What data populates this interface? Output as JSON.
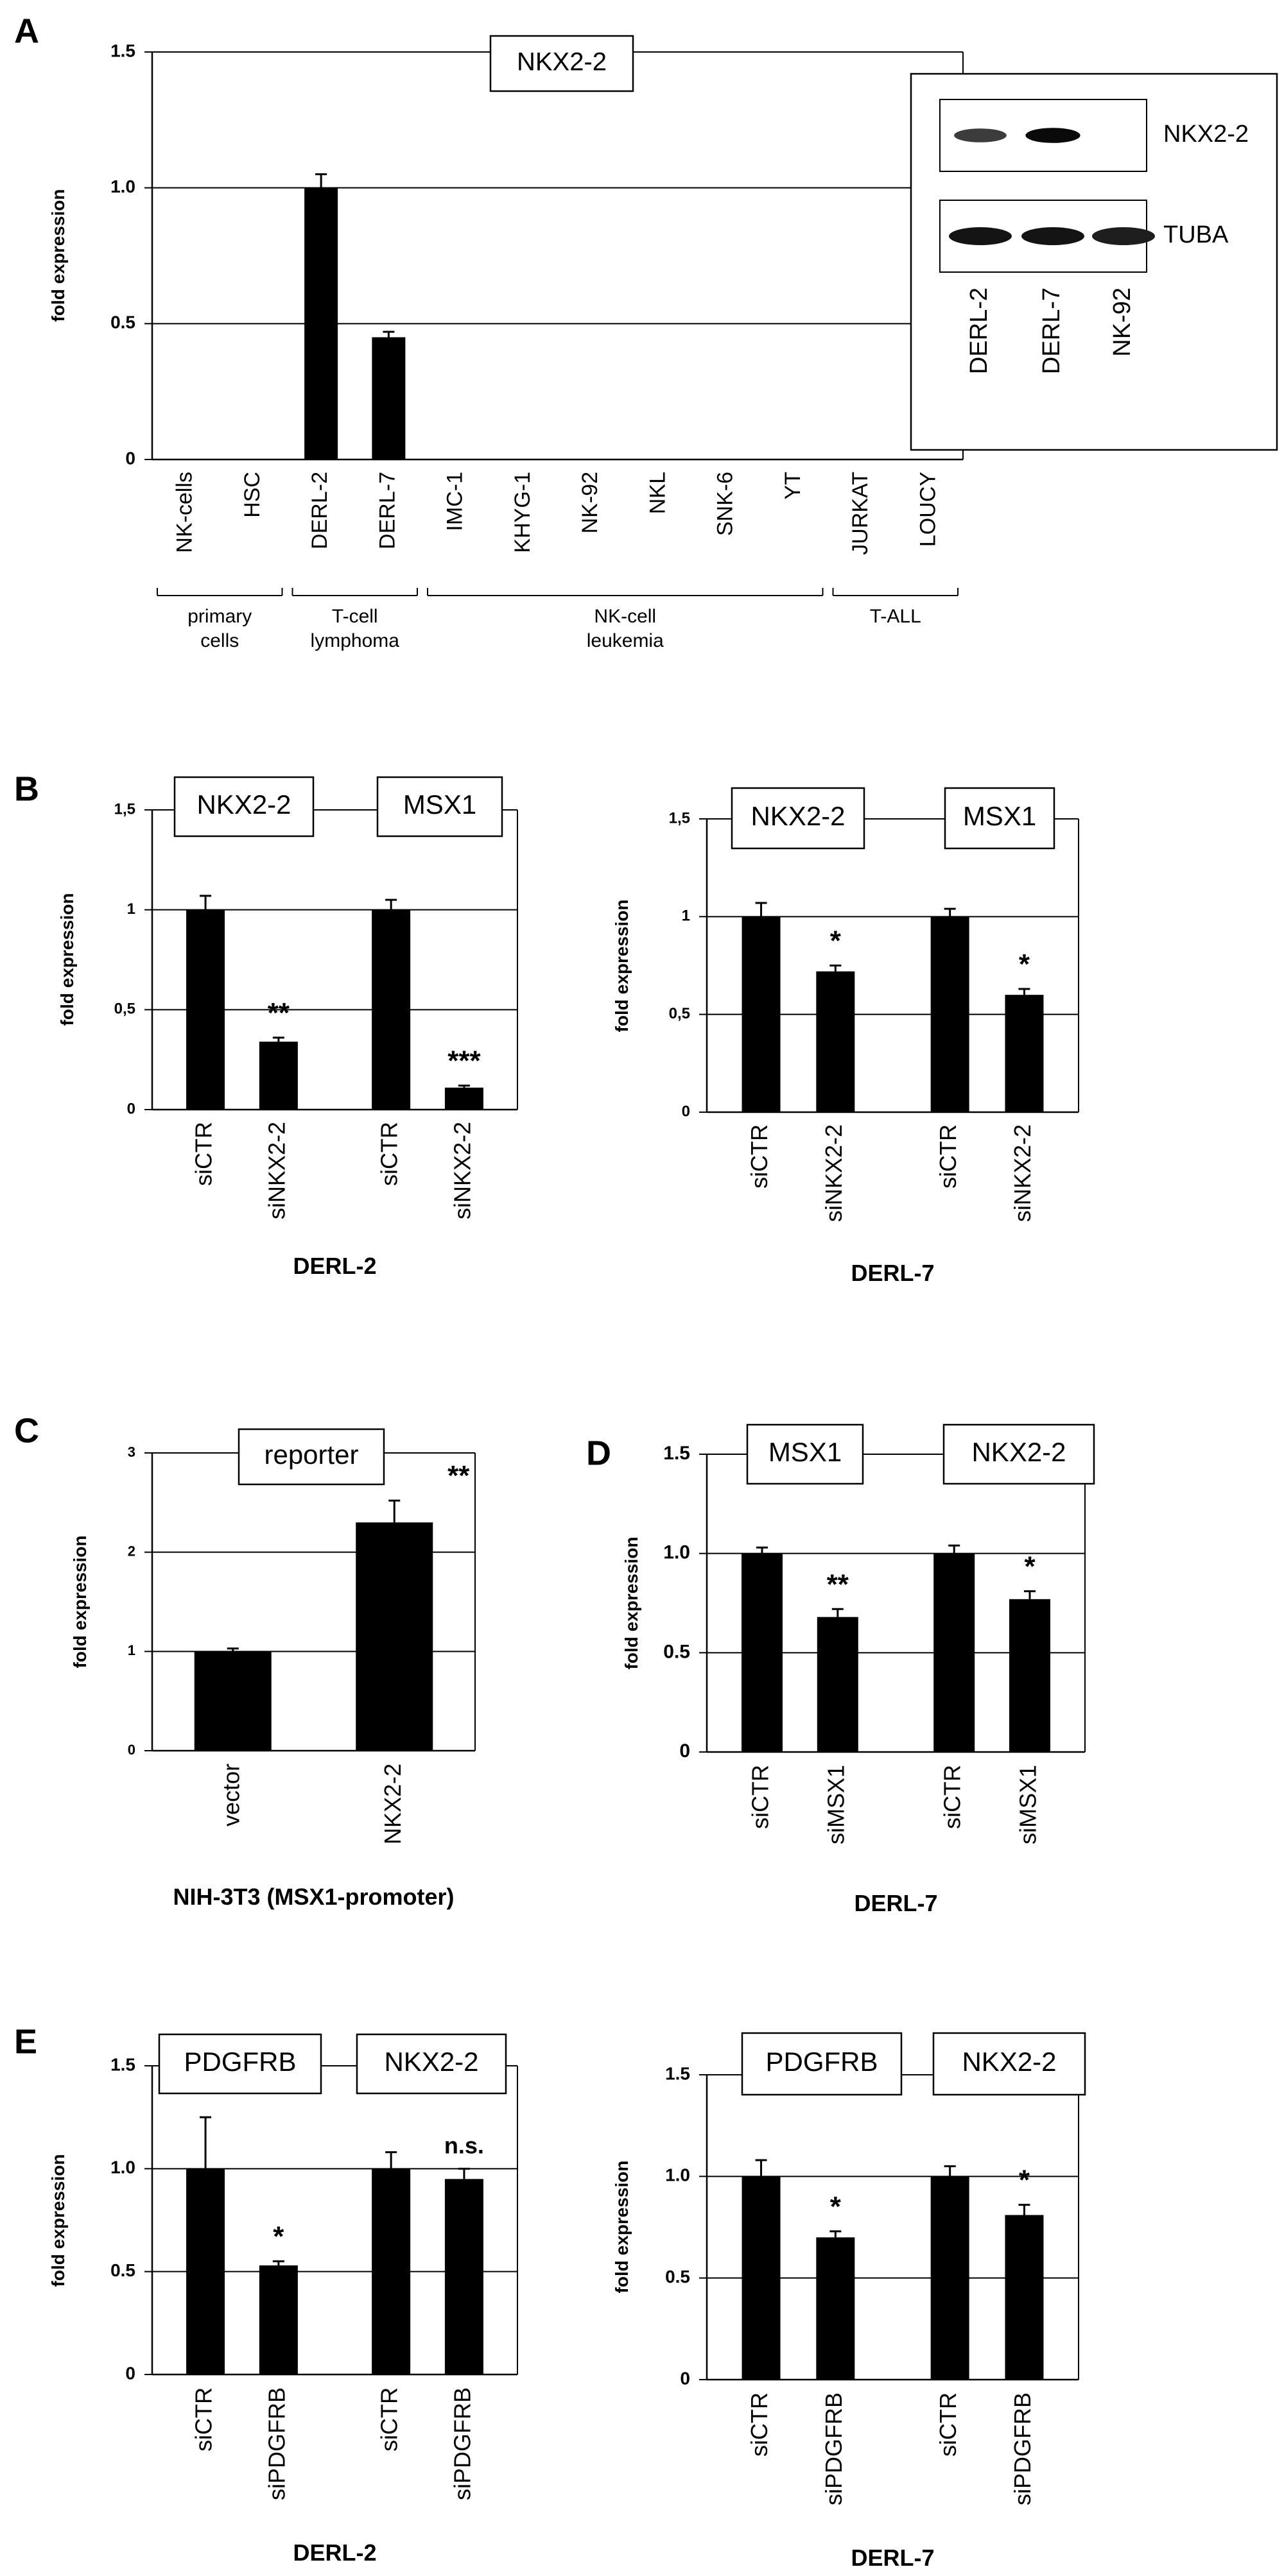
{
  "panels": [
    {
      "letter": "A"
    },
    {
      "letter": "B"
    },
    {
      "letter": "C"
    },
    {
      "letter": "D"
    },
    {
      "letter": "E"
    }
  ],
  "colors": {
    "bar": "#000000",
    "background": "#ffffff",
    "axis": "#000000"
  },
  "chart_data": [
    {
      "type": "bar",
      "panel": "A",
      "title": "NKX2-2",
      "ylabel": "fold expression",
      "ylim": [
        0,
        1.5
      ],
      "yticks": [
        "0",
        "0.5",
        "1.0",
        "1.5"
      ],
      "categories": [
        "NK-cells",
        "HSC",
        "DERL-2",
        "DERL-7",
        "IMC-1",
        "KHYG-1",
        "NK-92",
        "NKL",
        "SNK-6",
        "YT",
        "JURKAT",
        "LOUCY"
      ],
      "series": [
        {
          "values": [
            0,
            0,
            1.0,
            0.45,
            0,
            0,
            0,
            0,
            0,
            0,
            0,
            0
          ]
        }
      ],
      "errors": [
        0,
        0,
        0.05,
        0.02,
        0,
        0,
        0,
        0,
        0,
        0,
        0,
        0
      ],
      "groups": [
        {
          "label": "primary cells",
          "lines": [
            "primary",
            "cells"
          ],
          "from": 0,
          "to": 1
        },
        {
          "label": "T-cell lymphoma",
          "lines": [
            "T-cell",
            "lymphoma"
          ],
          "from": 2,
          "to": 3
        },
        {
          "label": "NK-cell leukemia",
          "lines": [
            "NK-cell",
            "leukemia"
          ],
          "from": 4,
          "to": 9
        },
        {
          "label": "T-ALL",
          "lines": [
            "T-ALL"
          ],
          "from": 10,
          "to": 11
        }
      ],
      "grid": true,
      "inset_western_blot": {
        "lanes": [
          "DERL-2",
          "DERL-7",
          "NK-92"
        ],
        "rows": [
          {
            "label": "NKX2-2",
            "intensity": [
              0.7,
              0.95,
              0
            ]
          },
          {
            "label": "TUBA",
            "intensity": [
              0.9,
              0.9,
              0.85
            ]
          }
        ]
      }
    },
    {
      "type": "bar",
      "panel": "B",
      "xlabel": "DERL-2",
      "ylabel": "fold expression",
      "ylim": [
        0,
        1.5
      ],
      "yticks": [
        "0",
        "0,5",
        "1",
        "1,5"
      ],
      "categories": [
        "siCTR",
        "siNKX2-2",
        "siCTR",
        "siNKX2-2"
      ],
      "series": [
        {
          "values": [
            1.0,
            0.34,
            1.0,
            0.11
          ]
        }
      ],
      "errors": [
        0.07,
        0.02,
        0.05,
        0.01
      ],
      "significance": [
        "",
        "**",
        "",
        "***"
      ],
      "boxes": [
        "NKX2-2",
        "MSX1"
      ],
      "grid": true
    },
    {
      "type": "bar",
      "panel": "B",
      "xlabel": "DERL-7",
      "ylabel": "fold expression",
      "ylim": [
        0,
        1.5
      ],
      "yticks": [
        "0",
        "0,5",
        "1",
        "1,5"
      ],
      "categories": [
        "siCTR",
        "siNKX2-2",
        "siCTR",
        "siNKX2-2"
      ],
      "series": [
        {
          "values": [
            1.0,
            0.72,
            1.0,
            0.6
          ]
        }
      ],
      "errors": [
        0.07,
        0.03,
        0.04,
        0.03
      ],
      "significance": [
        "",
        "*",
        "",
        "*"
      ],
      "boxes": [
        "NKX2-2",
        "MSX1"
      ],
      "grid": true
    },
    {
      "type": "bar",
      "panel": "C",
      "xlabel": "NIH-3T3 (MSX1-promoter)",
      "ylabel": "fold expression",
      "ylim": [
        0,
        3
      ],
      "yticks": [
        "0",
        "1",
        "2",
        "3"
      ],
      "categories": [
        "vector",
        "NKX2-2"
      ],
      "series": [
        {
          "values": [
            1.0,
            2.3
          ]
        }
      ],
      "errors": [
        0.03,
        0.22
      ],
      "significance": [
        "",
        "**"
      ],
      "boxes": [
        "reporter"
      ],
      "grid": true
    },
    {
      "type": "bar",
      "panel": "D",
      "xlabel": "DERL-7",
      "ylabel": "fold expression",
      "ylim": [
        0,
        1.5
      ],
      "yticks": [
        "0",
        "0.5",
        "1.0",
        "1.5"
      ],
      "categories": [
        "siCTR",
        "siMSX1",
        "siCTR",
        "siMSX1"
      ],
      "series": [
        {
          "values": [
            1.0,
            0.68,
            1.0,
            0.77
          ]
        }
      ],
      "errors": [
        0.03,
        0.04,
        0.04,
        0.04
      ],
      "significance": [
        "",
        "**",
        "",
        "*"
      ],
      "boxes": [
        "MSX1",
        "NKX2-2"
      ],
      "grid": true
    },
    {
      "type": "bar",
      "panel": "E",
      "xlabel": "DERL-2",
      "ylabel": "fold expression",
      "ylim": [
        0,
        1.5
      ],
      "yticks": [
        "0",
        "0.5",
        "1.0",
        "1.5"
      ],
      "categories": [
        "siCTR",
        "siPDGFRB",
        "siCTR",
        "siPDGFRB"
      ],
      "series": [
        {
          "values": [
            1.0,
            0.53,
            1.0,
            0.95
          ]
        }
      ],
      "errors": [
        0.25,
        0.02,
        0.08,
        0.05
      ],
      "significance": [
        "",
        "*",
        "",
        "n.s."
      ],
      "boxes": [
        "PDGFRB",
        "NKX2-2"
      ],
      "grid": true
    },
    {
      "type": "bar",
      "panel": "E",
      "xlabel": "DERL-7",
      "ylabel": "fold expression",
      "ylim": [
        0,
        1.5
      ],
      "yticks": [
        "0",
        "0.5",
        "1.0",
        "1.5"
      ],
      "categories": [
        "siCTR",
        "siPDGFRB",
        "siCTR",
        "siPDGFRB"
      ],
      "series": [
        {
          "values": [
            1.0,
            0.7,
            1.0,
            0.81
          ]
        }
      ],
      "errors": [
        0.08,
        0.03,
        0.05,
        0.05
      ],
      "significance": [
        "",
        "*",
        "",
        "*"
      ],
      "boxes": [
        "PDGFRB",
        "NKX2-2"
      ],
      "grid": true
    }
  ]
}
